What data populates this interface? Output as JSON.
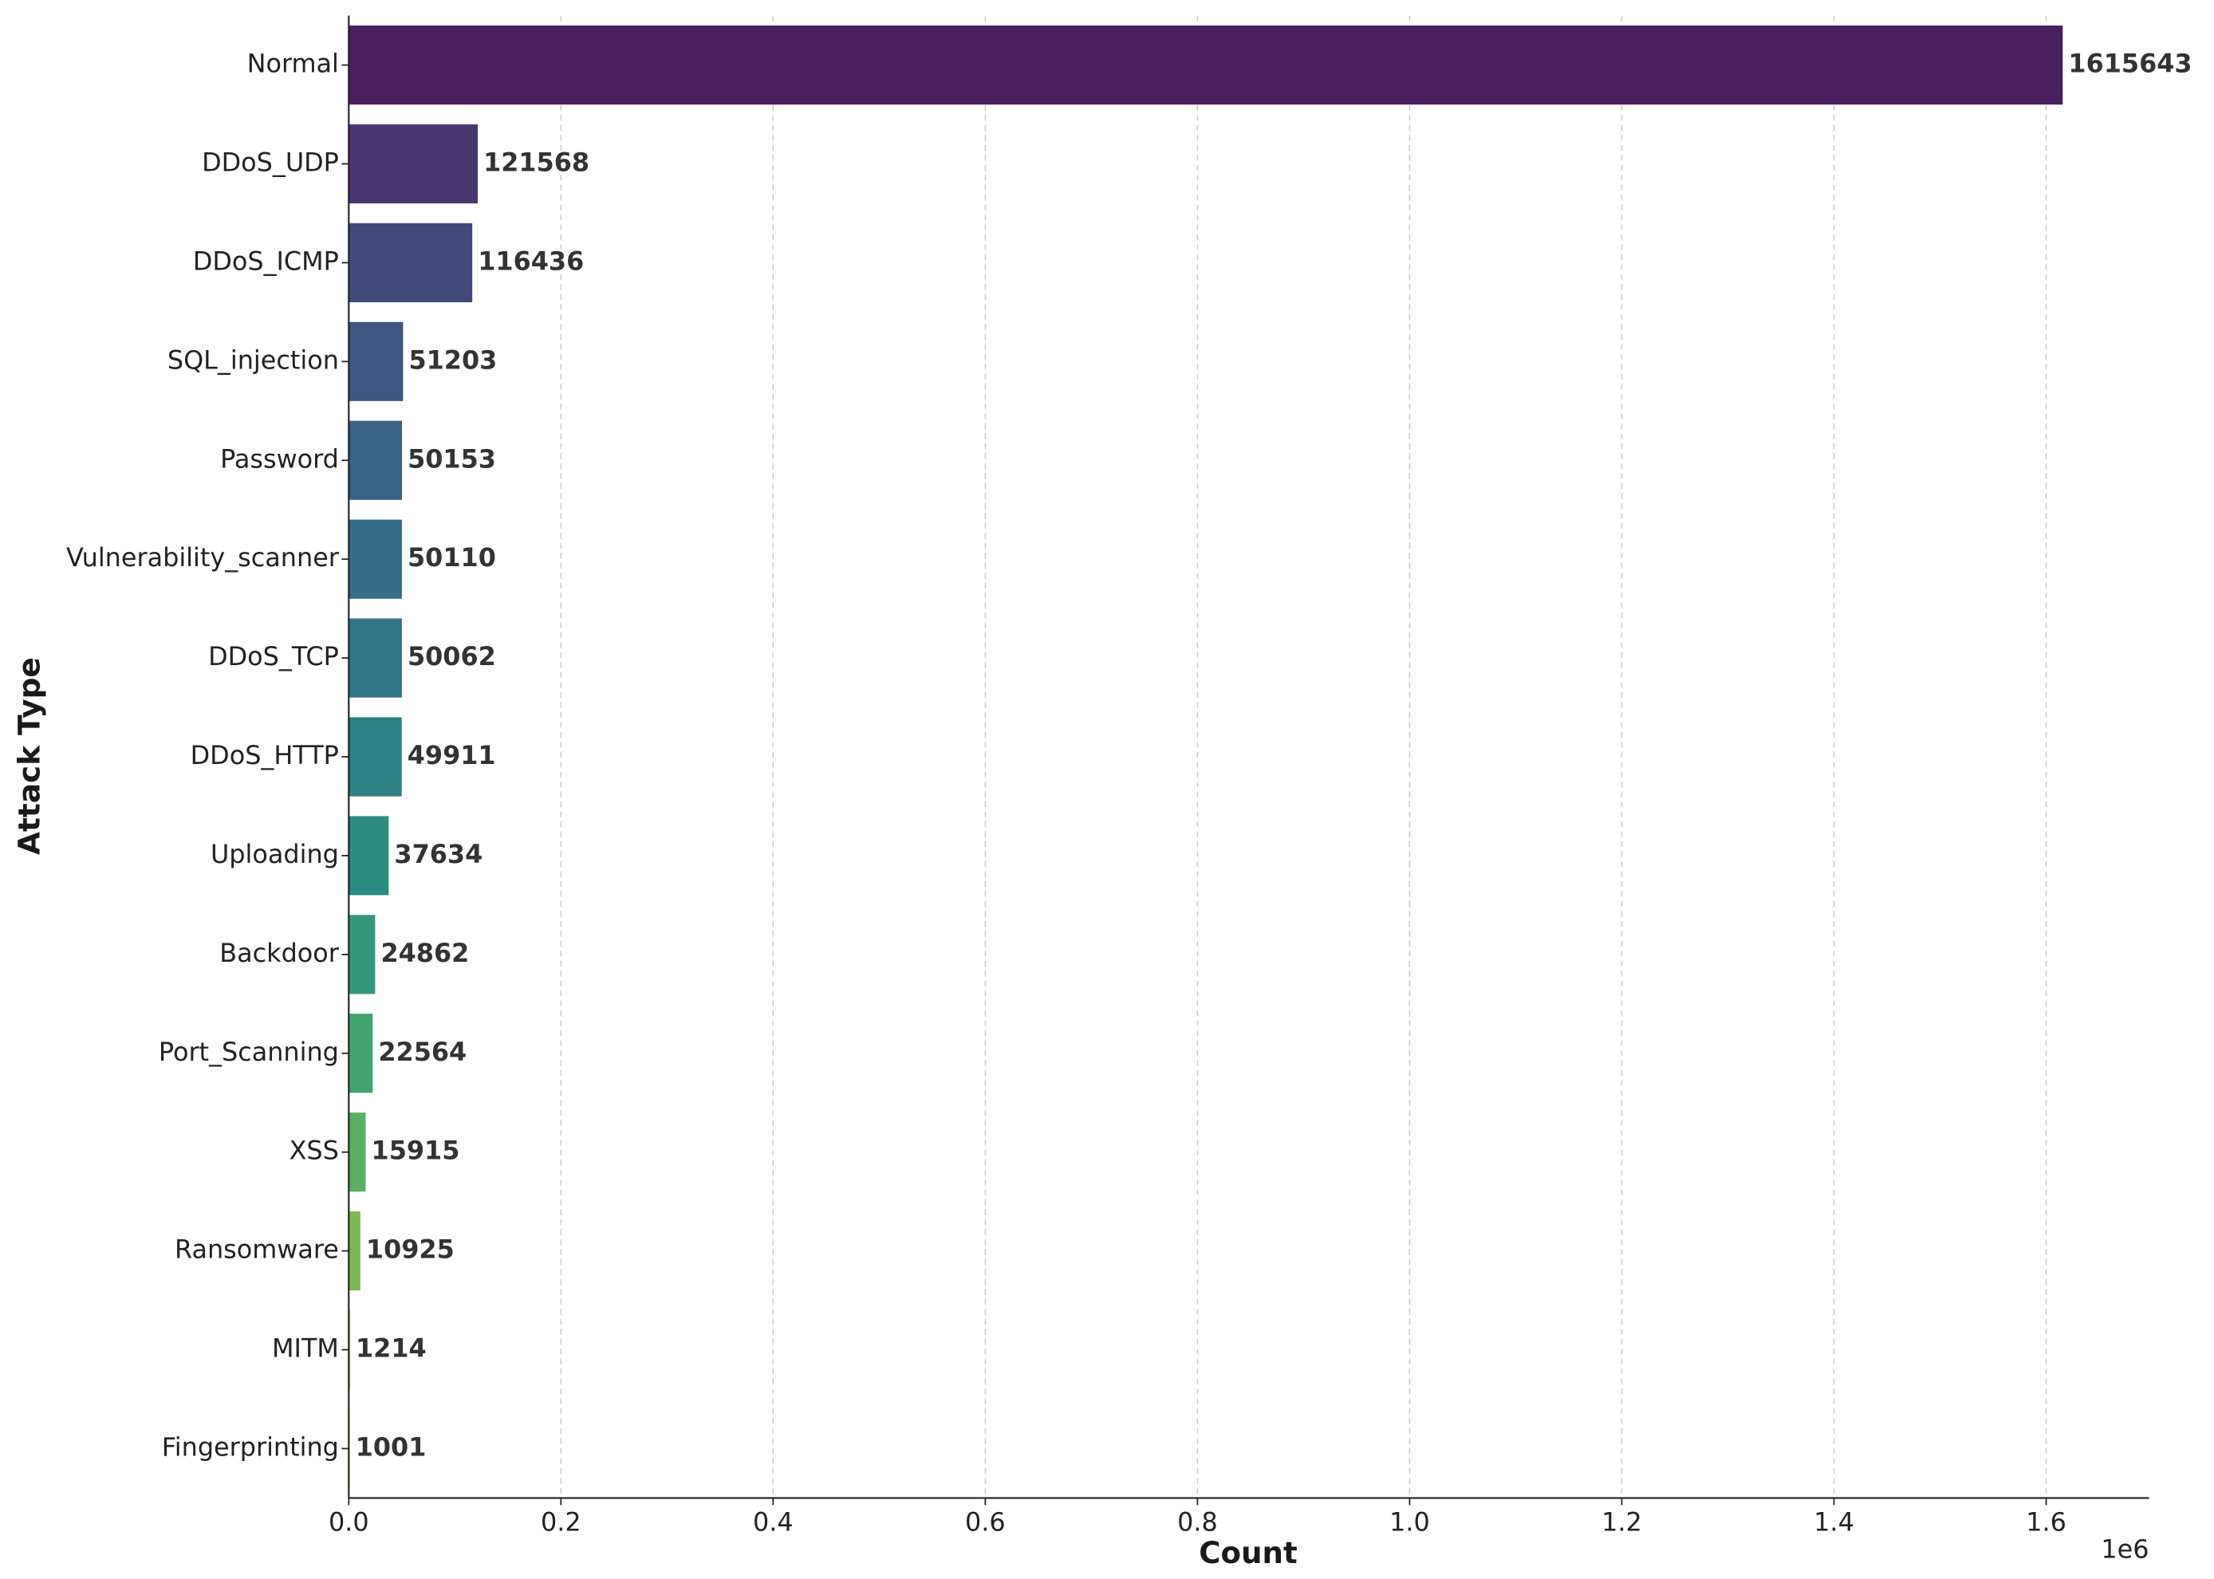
{
  "chart_data": {
    "type": "bar",
    "orientation": "horizontal",
    "x_label": "Count",
    "y_label": "Attack Type",
    "x_offset_label": "1e6",
    "categories": [
      "Normal",
      "DDoS_UDP",
      "DDoS_ICMP",
      "SQL_injection",
      "Password",
      "Vulnerability_scanner",
      "DDoS_TCP",
      "DDoS_HTTP",
      "Uploading",
      "Backdoor",
      "Port_Scanning",
      "XSS",
      "Ransomware",
      "MITM",
      "Fingerprinting"
    ],
    "values": [
      1615643,
      121568,
      116436,
      51203,
      50153,
      50110,
      50062,
      49911,
      37634,
      24862,
      22564,
      15915,
      10925,
      1214,
      1001
    ],
    "colors": [
      "#48205e",
      "#493870",
      "#434a7a",
      "#3d5780",
      "#3a6283",
      "#366c86",
      "#327686",
      "#2d8185",
      "#2d8c80",
      "#35977a",
      "#45a271",
      "#5aae65",
      "#7cb954",
      "#a3c240",
      "#c8c735"
    ],
    "xlim": [
      0,
      1697000
    ],
    "xticks": [
      {
        "value": 0,
        "label": "0.0"
      },
      {
        "value": 200000,
        "label": "0.2"
      },
      {
        "value": 400000,
        "label": "0.4"
      },
      {
        "value": 600000,
        "label": "0.6"
      },
      {
        "value": 800000,
        "label": "0.8"
      },
      {
        "value": 1000000,
        "label": "1.0"
      },
      {
        "value": 1200000,
        "label": "1.2"
      },
      {
        "value": 1400000,
        "label": "1.4"
      },
      {
        "value": 1600000,
        "label": "1.6"
      }
    ],
    "grid": true
  }
}
